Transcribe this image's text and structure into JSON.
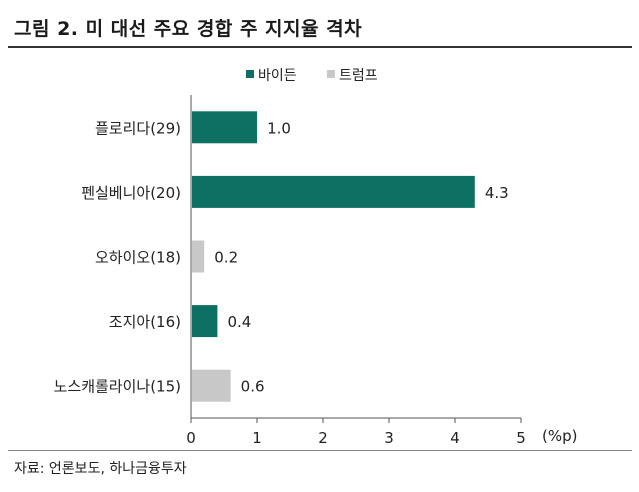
{
  "title": "그림 2. 미 대선 주요 경합 주 지지율 격차",
  "source": "자료: 언론보도, 하나금융투자",
  "colors": {
    "biden": "#0e6f63",
    "trump": "#c8c8c8",
    "axis": "#555555"
  },
  "chart_data": {
    "type": "bar",
    "orientation": "horizontal",
    "categories": [
      "플로리다(29)",
      "펜실베니아(20)",
      "오하이오(18)",
      "조지아(16)",
      "노스캐롤라이나(15)"
    ],
    "values": [
      1.0,
      4.3,
      0.2,
      0.4,
      0.6
    ],
    "value_labels": [
      "1.0",
      "4.3",
      "0.2",
      "0.4",
      "0.6"
    ],
    "leader": [
      "바이든",
      "바이든",
      "트럼프",
      "바이든",
      "트럼프"
    ],
    "series": [
      {
        "name": "바이든"
      },
      {
        "name": "트럼프"
      }
    ],
    "xlabel": "(%p)",
    "ylabel": "",
    "xlim": [
      0,
      5
    ],
    "xticks": [
      "0",
      "1",
      "2",
      "3",
      "4",
      "5"
    ],
    "legend": "top-right",
    "grid": false
  }
}
